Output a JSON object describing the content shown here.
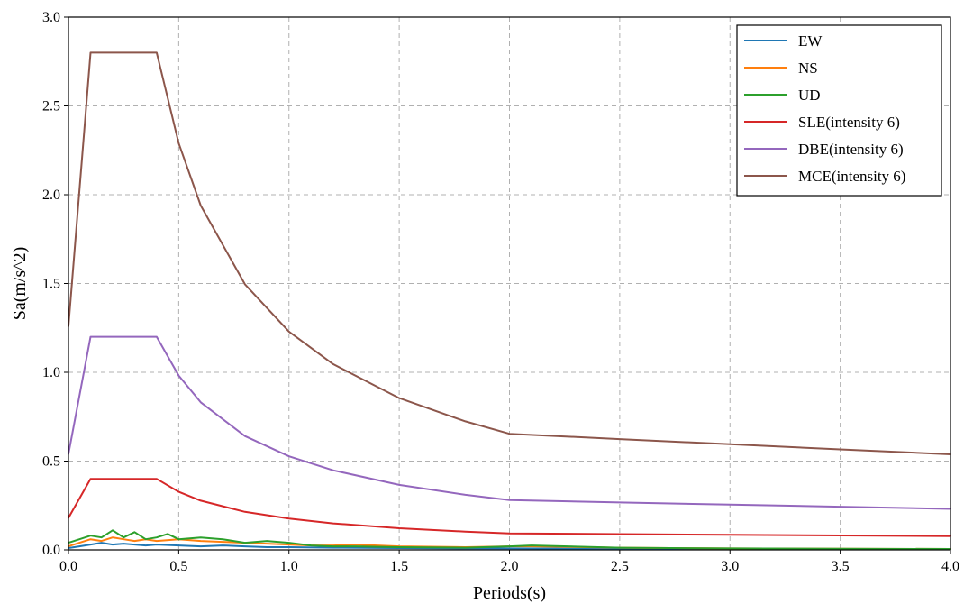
{
  "chart_data": {
    "type": "line",
    "xlabel": "Periods(s)",
    "ylabel": "Sa(m/s^2)",
    "xlim": [
      0.0,
      4.0
    ],
    "ylim": [
      0.0,
      3.0
    ],
    "xticks": [
      "0.0",
      "0.5",
      "1.0",
      "1.5",
      "2.0",
      "2.5",
      "3.0",
      "3.5",
      "4.0"
    ],
    "yticks": [
      "0.0",
      "0.5",
      "1.0",
      "1.5",
      "2.0",
      "2.5",
      "3.0"
    ],
    "grid": true,
    "legend_position": "top-right",
    "series": [
      {
        "name": "EW",
        "color": "#1f77b4",
        "x": [
          0.0,
          0.05,
          0.1,
          0.15,
          0.2,
          0.25,
          0.3,
          0.35,
          0.4,
          0.5,
          0.6,
          0.7,
          0.8,
          0.9,
          1.0,
          1.2,
          1.5,
          1.8,
          2.0,
          2.5,
          3.0,
          3.5,
          4.0
        ],
        "y": [
          0.01,
          0.02,
          0.03,
          0.04,
          0.03,
          0.035,
          0.03,
          0.025,
          0.03,
          0.025,
          0.02,
          0.025,
          0.02,
          0.015,
          0.015,
          0.012,
          0.01,
          0.008,
          0.008,
          0.006,
          0.005,
          0.004,
          0.004
        ]
      },
      {
        "name": "NS",
        "color": "#ff7f0e",
        "x": [
          0.0,
          0.05,
          0.1,
          0.15,
          0.2,
          0.25,
          0.3,
          0.35,
          0.4,
          0.5,
          0.6,
          0.7,
          0.8,
          0.9,
          1.0,
          1.1,
          1.2,
          1.3,
          1.5,
          1.8,
          2.0,
          2.1,
          2.5,
          3.0,
          3.5,
          4.0
        ],
        "y": [
          0.02,
          0.04,
          0.06,
          0.05,
          0.07,
          0.06,
          0.05,
          0.06,
          0.05,
          0.06,
          0.05,
          0.045,
          0.04,
          0.035,
          0.03,
          0.025,
          0.025,
          0.03,
          0.02,
          0.015,
          0.02,
          0.02,
          0.012,
          0.008,
          0.006,
          0.005
        ]
      },
      {
        "name": "UD",
        "color": "#2ca02c",
        "x": [
          0.0,
          0.05,
          0.1,
          0.15,
          0.2,
          0.25,
          0.3,
          0.35,
          0.4,
          0.45,
          0.5,
          0.6,
          0.7,
          0.8,
          0.9,
          1.0,
          1.1,
          1.2,
          1.3,
          1.5,
          1.8,
          2.0,
          2.1,
          2.5,
          3.0,
          3.5,
          4.0
        ],
        "y": [
          0.04,
          0.06,
          0.08,
          0.07,
          0.11,
          0.07,
          0.1,
          0.06,
          0.07,
          0.09,
          0.06,
          0.07,
          0.06,
          0.04,
          0.05,
          0.04,
          0.025,
          0.02,
          0.02,
          0.015,
          0.012,
          0.02,
          0.025,
          0.012,
          0.008,
          0.006,
          0.005
        ]
      },
      {
        "name": "SLE(intensity 6)",
        "color": "#d62728",
        "x": [
          0.0,
          0.1,
          0.4,
          0.5,
          0.6,
          0.8,
          1.0,
          1.2,
          1.5,
          1.8,
          2.0,
          2.5,
          3.0,
          3.5,
          4.0
        ],
        "y": [
          0.18,
          0.4,
          0.4,
          0.327,
          0.277,
          0.214,
          0.176,
          0.149,
          0.122,
          0.103,
          0.093,
          0.089,
          0.085,
          0.081,
          0.077
        ]
      },
      {
        "name": "DBE(intensity 6)",
        "color": "#9467bd",
        "x": [
          0.0,
          0.1,
          0.4,
          0.5,
          0.6,
          0.8,
          1.0,
          1.2,
          1.5,
          1.8,
          2.0,
          2.5,
          3.0,
          3.5,
          4.0
        ],
        "y": [
          0.54,
          1.2,
          1.2,
          0.981,
          0.831,
          0.641,
          0.527,
          0.448,
          0.366,
          0.31,
          0.28,
          0.267,
          0.255,
          0.243,
          0.231
        ]
      },
      {
        "name": "MCE(intensity 6)",
        "color": "#8c564b",
        "x": [
          0.0,
          0.1,
          0.4,
          0.5,
          0.6,
          0.8,
          1.0,
          1.2,
          1.5,
          1.8,
          2.0,
          2.5,
          3.0,
          3.5,
          4.0
        ],
        "y": [
          1.26,
          2.8,
          2.8,
          2.289,
          1.939,
          1.496,
          1.229,
          1.046,
          0.855,
          0.724,
          0.654,
          0.624,
          0.595,
          0.566,
          0.538
        ]
      }
    ]
  }
}
